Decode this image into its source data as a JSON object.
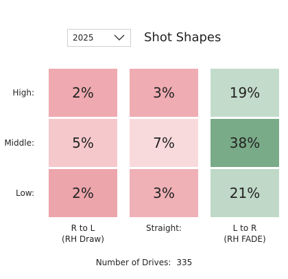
{
  "filter": {
    "year": "2025"
  },
  "title": "Shot Shapes",
  "rows": [
    {
      "label": "High:"
    },
    {
      "label": "Middle:"
    },
    {
      "label": "Low:"
    }
  ],
  "columns": [
    {
      "line1": "R to L",
      "line2": "(RH Draw)"
    },
    {
      "line1": "Straight:",
      "line2": ""
    },
    {
      "line1": "L to R",
      "line2": "(RH FADE)"
    }
  ],
  "cells": [
    [
      {
        "value": "2%",
        "color": "#eeaab0"
      },
      {
        "value": "3%",
        "color": "#efacb2"
      },
      {
        "value": "19%",
        "color": "#c3dbcb"
      }
    ],
    [
      {
        "value": "5%",
        "color": "#f5c8cc"
      },
      {
        "value": "7%",
        "color": "#f8dadd"
      },
      {
        "value": "38%",
        "color": "#7aab88"
      }
    ],
    [
      {
        "value": "2%",
        "color": "#eca5ab"
      },
      {
        "value": "3%",
        "color": "#efb1b6"
      },
      {
        "value": "21%",
        "color": "#bfd8c7"
      }
    ]
  ],
  "footer": {
    "label": "Number of Drives:",
    "value": "335"
  },
  "icons": {
    "dropdown": "chevron-down-icon"
  }
}
